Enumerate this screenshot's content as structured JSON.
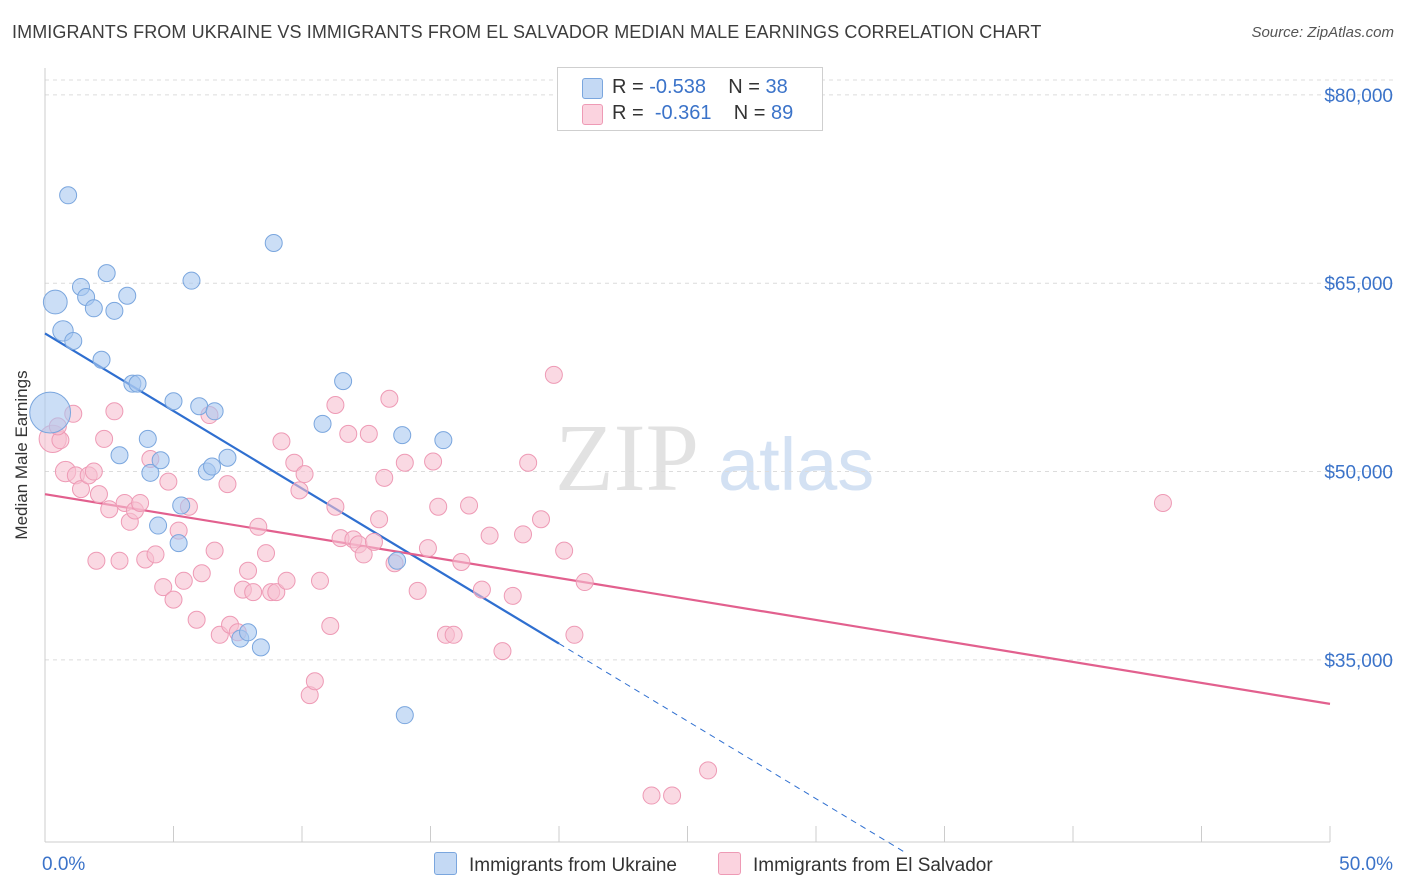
{
  "header": {
    "title": "IMMIGRANTS FROM UKRAINE VS IMMIGRANTS FROM EL SALVADOR MEDIAN MALE EARNINGS CORRELATION CHART",
    "source": "Source: ZipAtlas.com"
  },
  "watermark": {
    "zip": "ZIP",
    "atlas": "atlas"
  },
  "legend": {
    "r_label": "R =",
    "n_label": "N =",
    "rows": [
      {
        "r": "-0.538",
        "n": "38"
      },
      {
        "r": "-0.361",
        "n": "89"
      }
    ]
  },
  "colors": {
    "ukraine_fill": "#a9c8f0",
    "ukraine_stroke": "#7aa6de",
    "ukraine_line": "#2f6fd0",
    "elsalvador_fill": "#f7c0d0",
    "elsalvador_stroke": "#ee9ab5",
    "elsalvador_line": "#e2608e",
    "axis_text": "#3b73c9",
    "grid": "#dcdcdc"
  },
  "chart_data": {
    "type": "scatter",
    "title": "IMMIGRANTS FROM UKRAINE VS IMMIGRANTS FROM EL SALVADOR MEDIAN MALE EARNINGS CORRELATION CHART",
    "xlabel": "",
    "ylabel": "Median Male Earnings",
    "x_ticks": [
      "0.0%",
      "50.0%"
    ],
    "y_ticks": [
      {
        "value": 35000,
        "label": "$35,000"
      },
      {
        "value": 50000,
        "label": "$50,000"
      },
      {
        "value": 65000,
        "label": "$65,000"
      },
      {
        "value": 80000,
        "label": "$80,000"
      }
    ],
    "xlim": [
      0,
      50
    ],
    "ylim": [
      20500,
      81500
    ],
    "grid": true,
    "legend_position": "top-center",
    "series": [
      {
        "name": "Immigrants from Ukraine",
        "r": -0.538,
        "n": 38,
        "trend": {
          "x0": 0,
          "y0": 61000,
          "x1": 20,
          "y1": 36300,
          "dashed_to_x": 33.5
        },
        "points": [
          [
            0.2,
            54700,
            2.4
          ],
          [
            0.4,
            63500,
            1.4
          ],
          [
            0.7,
            61200,
            1.2
          ],
          [
            0.9,
            72000,
            1
          ],
          [
            1.1,
            60400,
            1
          ],
          [
            1.4,
            64700,
            1
          ],
          [
            1.6,
            63900,
            1
          ],
          [
            1.9,
            63000,
            1
          ],
          [
            2.2,
            58900,
            1
          ],
          [
            2.4,
            65800,
            1
          ],
          [
            2.7,
            62800,
            1
          ],
          [
            3.2,
            64000,
            1
          ],
          [
            3.4,
            57000,
            1
          ],
          [
            3.6,
            57000,
            1
          ],
          [
            2.9,
            51300,
            1
          ],
          [
            4.0,
            52600,
            1
          ],
          [
            4.1,
            49900,
            1
          ],
          [
            4.5,
            50900,
            1
          ],
          [
            4.4,
            45700,
            1
          ],
          [
            5.0,
            55600,
            1
          ],
          [
            5.2,
            44300,
            1
          ],
          [
            5.3,
            47300,
            1
          ],
          [
            5.7,
            65200,
            1
          ],
          [
            6.0,
            55200,
            1
          ],
          [
            6.3,
            50000,
            1
          ],
          [
            6.5,
            50400,
            1
          ],
          [
            6.6,
            54800,
            1
          ],
          [
            7.1,
            51100,
            1
          ],
          [
            7.6,
            36700,
            1
          ],
          [
            7.9,
            37200,
            1
          ],
          [
            8.4,
            36000,
            1
          ],
          [
            8.9,
            68200,
            1
          ],
          [
            10.8,
            53800,
            1
          ],
          [
            11.6,
            57200,
            1
          ],
          [
            13.7,
            42900,
            1
          ],
          [
            13.9,
            52900,
            1
          ],
          [
            14.0,
            30600,
            1
          ],
          [
            15.5,
            52500,
            1
          ]
        ]
      },
      {
        "name": "Immigrants from El Salvador",
        "r": -0.361,
        "n": 89,
        "trend": {
          "x0": 0,
          "y0": 48200,
          "x1": 50,
          "y1": 31500
        },
        "points": [
          [
            0.3,
            52600,
            1.6
          ],
          [
            0.6,
            52500,
            1
          ],
          [
            0.8,
            50000,
            1.2
          ],
          [
            1.1,
            54600,
            1
          ],
          [
            1.2,
            49700,
            1
          ],
          [
            1.4,
            48600,
            1
          ],
          [
            1.7,
            49700,
            1
          ],
          [
            1.9,
            50000,
            1
          ],
          [
            2.1,
            48200,
            1
          ],
          [
            2.3,
            52600,
            1
          ],
          [
            2.5,
            47000,
            1
          ],
          [
            2.7,
            54800,
            1
          ],
          [
            2.9,
            42900,
            1
          ],
          [
            3.1,
            47500,
            1
          ],
          [
            3.3,
            46000,
            1
          ],
          [
            3.5,
            46900,
            1
          ],
          [
            3.7,
            47500,
            1
          ],
          [
            3.9,
            43000,
            1
          ],
          [
            4.1,
            51000,
            1
          ],
          [
            4.3,
            43400,
            1
          ],
          [
            4.6,
            40800,
            1
          ],
          [
            4.8,
            49200,
            1
          ],
          [
            5.0,
            39800,
            1
          ],
          [
            5.2,
            45300,
            1
          ],
          [
            5.4,
            41300,
            1
          ],
          [
            5.6,
            47200,
            1
          ],
          [
            5.9,
            38200,
            1
          ],
          [
            6.1,
            41900,
            1
          ],
          [
            6.4,
            54500,
            1
          ],
          [
            6.6,
            43700,
            1
          ],
          [
            6.8,
            37000,
            1
          ],
          [
            7.1,
            49000,
            1
          ],
          [
            7.2,
            37800,
            1
          ],
          [
            7.5,
            37200,
            1
          ],
          [
            7.7,
            40600,
            1
          ],
          [
            7.9,
            42100,
            1
          ],
          [
            8.1,
            40400,
            1
          ],
          [
            8.3,
            45600,
            1
          ],
          [
            8.6,
            43500,
            1
          ],
          [
            8.8,
            40400,
            1
          ],
          [
            9.0,
            40400,
            1
          ],
          [
            9.2,
            52400,
            1
          ],
          [
            9.4,
            41300,
            1
          ],
          [
            9.7,
            50700,
            1
          ],
          [
            9.9,
            48500,
            1
          ],
          [
            10.1,
            49800,
            1
          ],
          [
            10.3,
            32200,
            1
          ],
          [
            10.5,
            33300,
            1
          ],
          [
            10.7,
            41300,
            1
          ],
          [
            11.1,
            37700,
            1
          ],
          [
            11.3,
            55300,
            1
          ],
          [
            11.3,
            47200,
            1
          ],
          [
            11.5,
            44700,
            1
          ],
          [
            11.8,
            53000,
            1
          ],
          [
            12.0,
            44600,
            1
          ],
          [
            12.2,
            44200,
            1
          ],
          [
            12.4,
            43400,
            1
          ],
          [
            12.6,
            53000,
            1
          ],
          [
            12.8,
            44400,
            1
          ],
          [
            13.0,
            46200,
            1
          ],
          [
            13.2,
            49500,
            1
          ],
          [
            13.4,
            55800,
            1
          ],
          [
            13.6,
            42700,
            1
          ],
          [
            14.0,
            50700,
            1
          ],
          [
            14.5,
            40500,
            1
          ],
          [
            14.9,
            43900,
            1
          ],
          [
            15.1,
            50800,
            1
          ],
          [
            15.3,
            47200,
            1
          ],
          [
            15.6,
            37000,
            1
          ],
          [
            15.9,
            37000,
            1
          ],
          [
            16.2,
            42800,
            1
          ],
          [
            16.5,
            47300,
            1
          ],
          [
            17.0,
            40600,
            1
          ],
          [
            17.3,
            44900,
            1
          ],
          [
            17.8,
            35700,
            1
          ],
          [
            18.2,
            40100,
            1
          ],
          [
            18.6,
            45000,
            1
          ],
          [
            18.8,
            50700,
            1
          ],
          [
            19.3,
            46200,
            1
          ],
          [
            19.8,
            57700,
            1
          ],
          [
            20.2,
            43700,
            1
          ],
          [
            20.6,
            37000,
            1
          ],
          [
            21.0,
            41200,
            1
          ],
          [
            23.6,
            24200,
            1
          ],
          [
            24.4,
            24200,
            1
          ],
          [
            25.8,
            26200,
            1
          ],
          [
            43.5,
            47500,
            1
          ],
          [
            0.5,
            53600,
            1
          ],
          [
            2.0,
            42900,
            1
          ]
        ]
      }
    ]
  },
  "bottom_legend": {
    "items": [
      {
        "label": "Immigrants from Ukraine"
      },
      {
        "label": "Immigrants from El Salvador"
      }
    ]
  }
}
